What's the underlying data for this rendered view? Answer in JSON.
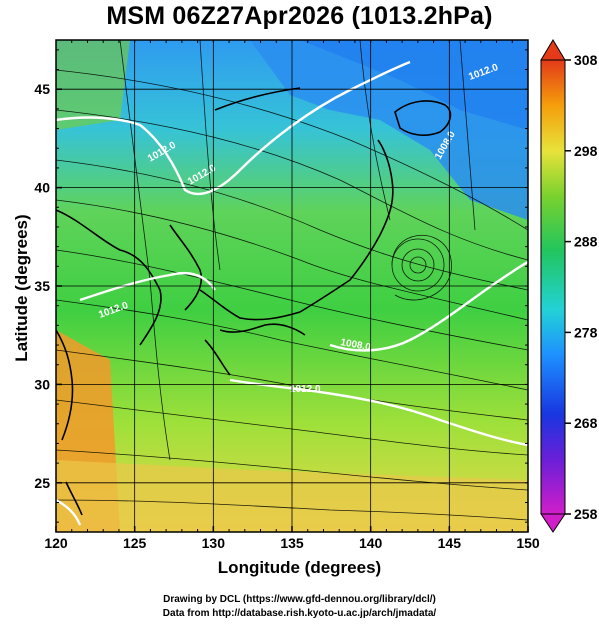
{
  "title": "MSM 06Z27Apr2026 (1013.2hPa)",
  "x_axis": {
    "label": "Longitude (degrees)",
    "min": 120,
    "max": 150,
    "ticks": [
      "120",
      "125",
      "130",
      "135",
      "140",
      "145",
      "150"
    ]
  },
  "y_axis": {
    "label": "Latitude  (degrees)",
    "min": 22.5,
    "max": 47.5,
    "ticks": [
      "25",
      "30",
      "35",
      "40",
      "45"
    ]
  },
  "colorbar": {
    "min": 258,
    "max": 308,
    "ticks": [
      "258",
      "268",
      "278",
      "288",
      "298",
      "308"
    ]
  },
  "contour_labels": [
    "1012.0",
    "1012.0",
    "1012.0",
    "1008.0",
    "1008.0",
    "1012.0",
    "1012.0"
  ],
  "credits": {
    "line1": "Drawing by DCL (https://www.gfd-dennou.org/library/dcl/)",
    "line2": "Data from http://database.rish.kyoto-u.ac.jp/arch/jmadata/"
  },
  "colors": {
    "cold": "#1e90ff",
    "mid": "#22c55e",
    "warm": "#f59e0b",
    "land_outline": "#000000",
    "isobar": "#ffffff"
  }
}
